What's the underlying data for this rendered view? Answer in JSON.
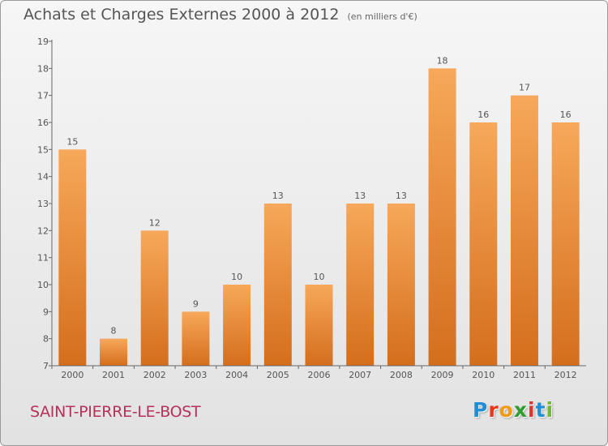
{
  "page": {
    "commune": "SAINT-PIERRE-LE-BOST",
    "logo_letters": [
      {
        "char": "P",
        "color": "#1e8fd6"
      },
      {
        "char": "r",
        "color": "#e8381c"
      },
      {
        "char": "o",
        "color": "#f29a12"
      },
      {
        "char": "x",
        "color": "#2e9e2e"
      },
      {
        "char": "i",
        "color": "#e0332c"
      },
      {
        "char": "t",
        "color": "#1e8fd6"
      },
      {
        "char": "i",
        "color": "#6fb92c"
      }
    ]
  },
  "chart_data": {
    "type": "bar",
    "title": "Achats et Charges Externes 2000 à 2012",
    "subtitle": "(en milliers d'€)",
    "categories": [
      "2000",
      "2001",
      "2002",
      "2003",
      "2004",
      "2005",
      "2006",
      "2007",
      "2008",
      "2009",
      "2010",
      "2011",
      "2012"
    ],
    "values": [
      15,
      8,
      12,
      9,
      10,
      13,
      10,
      13,
      13,
      18,
      16,
      17,
      16
    ],
    "ylim": [
      7,
      19
    ],
    "yticks": [
      7,
      8,
      9,
      10,
      11,
      12,
      13,
      14,
      15,
      16,
      17,
      18,
      19
    ],
    "grid": false,
    "colors": {
      "bar_light": "#f7a85a",
      "bar_dark": "#d46e1c",
      "axis": "#666666",
      "text": "#555555"
    }
  }
}
